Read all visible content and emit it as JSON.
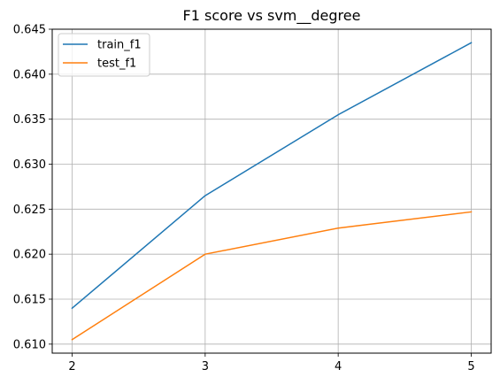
{
  "chart_data": {
    "type": "line",
    "title": "F1 score vs svm__degree",
    "xlabel": "",
    "ylabel": "",
    "x": [
      2,
      3,
      4,
      5
    ],
    "x_ticks": [
      "2",
      "3",
      "4",
      "5"
    ],
    "y_ticks": [
      "0.610",
      "0.615",
      "0.620",
      "0.625",
      "0.630",
      "0.635",
      "0.640",
      "0.645"
    ],
    "ylim": [
      0.609,
      0.645
    ],
    "grid": true,
    "legend_position": "top-left",
    "series": [
      {
        "name": "train_f1",
        "color": "#1f77b4",
        "values": [
          0.614,
          0.6265,
          0.6355,
          0.6435
        ]
      },
      {
        "name": "test_f1",
        "color": "#ff7f0e",
        "values": [
          0.6105,
          0.62,
          0.6229,
          0.6247
        ]
      }
    ]
  }
}
